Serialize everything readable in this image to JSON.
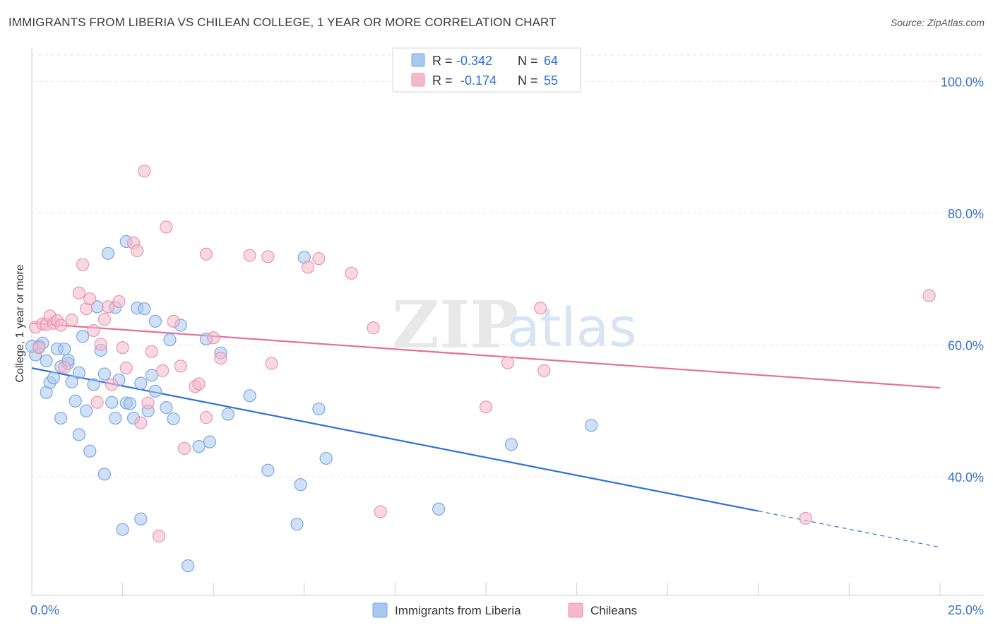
{
  "title": "IMMIGRANTS FROM LIBERIA VS CHILEAN COLLEGE, 1 YEAR OR MORE CORRELATION CHART",
  "source": "Source: ZipAtlas.com",
  "watermark": {
    "zip": "ZIP",
    "atlas": "atlas"
  },
  "legend_top": [
    {
      "r_label": "R = ",
      "r_value": "-0.342",
      "n_label": "N = ",
      "n_value": "64",
      "color": "#a9c8f0"
    },
    {
      "r_label": "R = ",
      "r_value": "-0.174",
      "n_label": "N = ",
      "n_value": "55",
      "color": "#f6b8cb"
    }
  ],
  "chart_data": {
    "type": "scatter",
    "title": "IMMIGRANTS FROM LIBERIA VS CHILEAN COLLEGE, 1 YEAR OR MORE CORRELATION CHART",
    "xlabel": "",
    "ylabel": "College, 1 year or more",
    "xlim": [
      0,
      25
    ],
    "ylim": [
      22,
      104
    ],
    "x_tick_labels": [
      "0.0%",
      "25.0%"
    ],
    "y_ticks": [
      40,
      60,
      80,
      100
    ],
    "y_tick_labels": [
      "40.0%",
      "60.0%",
      "80.0%",
      "100.0%"
    ],
    "grid": true,
    "legend_position": "bottom",
    "series": [
      {
        "name": "Immigrants from Liberia",
        "color": "#a9c8f0",
        "stroke": "#7aa7de",
        "line_color": "#2f72d4",
        "trend": {
          "x0": 0,
          "y0": 56.5,
          "x1": 20,
          "y1": 34.8,
          "dash_to_x": 25,
          "dash_to_y": 29.3
        },
        "points": [
          [
            0.1,
            58.5
          ],
          [
            0.2,
            59.8
          ],
          [
            0.3,
            60.3
          ],
          [
            0.4,
            57.6
          ],
          [
            0.4,
            52.8
          ],
          [
            0.5,
            54.3
          ],
          [
            0.6,
            55.0
          ],
          [
            0.7,
            59.4
          ],
          [
            0.8,
            56.7
          ],
          [
            0.8,
            48.9
          ],
          [
            0.9,
            59.4
          ],
          [
            1.0,
            57.2
          ],
          [
            1.0,
            57.7
          ],
          [
            1.1,
            54.4
          ],
          [
            1.2,
            51.5
          ],
          [
            1.3,
            55.8
          ],
          [
            1.3,
            46.4
          ],
          [
            1.4,
            61.3
          ],
          [
            1.5,
            50.0
          ],
          [
            1.6,
            43.9
          ],
          [
            1.7,
            54.0
          ],
          [
            1.8,
            65.8
          ],
          [
            1.9,
            59.2
          ],
          [
            2.0,
            55.6
          ],
          [
            2.0,
            40.4
          ],
          [
            2.1,
            73.9
          ],
          [
            2.2,
            51.3
          ],
          [
            2.3,
            48.9
          ],
          [
            2.3,
            65.7
          ],
          [
            2.4,
            54.7
          ],
          [
            2.5,
            32.0
          ],
          [
            2.6,
            75.7
          ],
          [
            2.6,
            51.2
          ],
          [
            2.7,
            51.1
          ],
          [
            2.8,
            48.9
          ],
          [
            2.9,
            65.6
          ],
          [
            3.0,
            54.2
          ],
          [
            3.0,
            33.6
          ],
          [
            3.1,
            65.5
          ],
          [
            3.2,
            50.0
          ],
          [
            3.3,
            55.4
          ],
          [
            3.4,
            53.0
          ],
          [
            3.4,
            63.6
          ],
          [
            3.7,
            50.5
          ],
          [
            3.8,
            60.8
          ],
          [
            3.9,
            48.8
          ],
          [
            4.1,
            63.0
          ],
          [
            4.3,
            26.5
          ],
          [
            4.6,
            44.6
          ],
          [
            4.8,
            60.9
          ],
          [
            4.9,
            45.3
          ],
          [
            5.2,
            58.8
          ],
          [
            5.4,
            49.5
          ],
          [
            6.0,
            52.3
          ],
          [
            6.5,
            41.0
          ],
          [
            7.3,
            32.8
          ],
          [
            7.4,
            38.8
          ],
          [
            7.5,
            73.3
          ],
          [
            7.9,
            50.3
          ],
          [
            8.1,
            42.8
          ],
          [
            11.2,
            35.1
          ],
          [
            13.2,
            44.9
          ],
          [
            15.4,
            47.8
          ],
          [
            0.0,
            59.8
          ]
        ]
      },
      {
        "name": "Chileans",
        "color": "#f6b8cb",
        "stroke": "#ea94af",
        "line_color": "#e4709a",
        "trend": {
          "x0": 0,
          "y0": 63.3,
          "x1": 25,
          "y1": 53.5
        },
        "points": [
          [
            0.1,
            62.7
          ],
          [
            0.2,
            59.6
          ],
          [
            0.3,
            63.2
          ],
          [
            0.4,
            63.1
          ],
          [
            0.5,
            64.4
          ],
          [
            0.6,
            63.3
          ],
          [
            0.7,
            63.7
          ],
          [
            0.8,
            63.0
          ],
          [
            0.9,
            56.6
          ],
          [
            1.1,
            63.8
          ],
          [
            1.3,
            67.9
          ],
          [
            1.4,
            72.2
          ],
          [
            1.5,
            65.5
          ],
          [
            1.6,
            67.0
          ],
          [
            1.7,
            62.2
          ],
          [
            1.8,
            51.3
          ],
          [
            1.9,
            60.1
          ],
          [
            2.0,
            63.9
          ],
          [
            2.1,
            65.8
          ],
          [
            2.2,
            54.0
          ],
          [
            2.4,
            66.6
          ],
          [
            2.5,
            59.6
          ],
          [
            2.6,
            56.5
          ],
          [
            2.8,
            75.5
          ],
          [
            2.9,
            74.3
          ],
          [
            3.0,
            48.2
          ],
          [
            3.1,
            86.4
          ],
          [
            3.2,
            51.2
          ],
          [
            3.3,
            59.0
          ],
          [
            3.5,
            31.0
          ],
          [
            3.6,
            56.1
          ],
          [
            3.7,
            77.9
          ],
          [
            3.9,
            63.6
          ],
          [
            4.1,
            56.8
          ],
          [
            4.2,
            44.3
          ],
          [
            4.5,
            53.7
          ],
          [
            4.6,
            54.1
          ],
          [
            4.8,
            73.8
          ],
          [
            4.8,
            49.0
          ],
          [
            5.0,
            61.1
          ],
          [
            5.2,
            58.0
          ],
          [
            6.0,
            73.6
          ],
          [
            6.5,
            73.4
          ],
          [
            6.6,
            57.2
          ],
          [
            7.6,
            71.8
          ],
          [
            7.9,
            73.1
          ],
          [
            8.8,
            70.9
          ],
          [
            9.4,
            62.6
          ],
          [
            9.6,
            34.7
          ],
          [
            12.5,
            50.6
          ],
          [
            13.1,
            57.3
          ],
          [
            14.0,
            65.6
          ],
          [
            14.1,
            56.1
          ],
          [
            21.3,
            33.7
          ],
          [
            24.7,
            67.5
          ]
        ]
      }
    ]
  }
}
